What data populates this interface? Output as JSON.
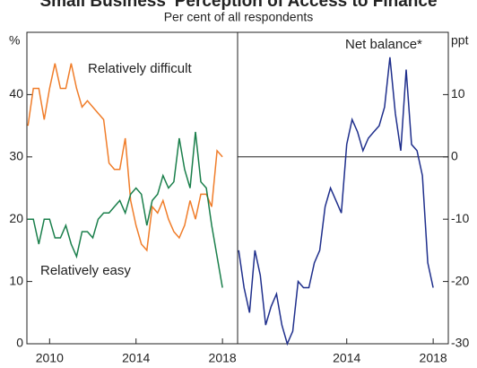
{
  "title": "Small Business' Perception of Access to Finance",
  "subtitle": "Per cent of all respondents",
  "chart_data": [
    {
      "type": "line",
      "ylabel": "%",
      "xlim": [
        2008.95,
        2018.7
      ],
      "xticks": [
        2010,
        2014,
        2018
      ],
      "ylim": [
        0,
        50
      ],
      "yticks": [
        0,
        10,
        20,
        30,
        40
      ],
      "x": [
        2009,
        2009.25,
        2009.5,
        2009.75,
        2010,
        2010.25,
        2010.5,
        2010.75,
        2011,
        2011.25,
        2011.5,
        2011.75,
        2012,
        2012.25,
        2012.5,
        2012.75,
        2013,
        2013.25,
        2013.5,
        2013.75,
        2014,
        2014.25,
        2014.5,
        2014.75,
        2015,
        2015.25,
        2015.5,
        2015.75,
        2016,
        2016.25,
        2016.5,
        2016.75,
        2017,
        2017.25,
        2017.5,
        2017.75,
        2018
      ],
      "series": [
        {
          "name": "Relatively difficult",
          "color": "#f07d2a",
          "values": [
            35,
            41,
            41,
            36,
            41,
            45,
            41,
            41,
            45,
            41,
            38,
            39,
            38,
            37,
            36,
            29,
            28,
            28,
            33,
            23,
            19,
            16,
            15,
            22,
            21,
            23,
            20,
            18,
            17,
            19,
            23,
            20,
            24,
            24,
            22,
            31,
            30
          ]
        },
        {
          "name": "Relatively easy",
          "color": "#1a7f4b",
          "values": [
            20,
            20,
            16,
            20,
            20,
            17,
            17,
            19,
            16,
            14,
            18,
            18,
            17,
            20,
            21,
            21,
            22,
            23,
            21,
            24,
            25,
            24,
            19,
            23,
            24,
            27,
            25,
            26,
            33,
            28,
            25,
            34,
            26,
            25,
            19,
            14,
            9
          ]
        }
      ]
    },
    {
      "type": "line",
      "ylabel": "ppt",
      "xlim": [
        2008.95,
        2018.7
      ],
      "xticks": [
        2014,
        2018
      ],
      "y2lim": [
        -30,
        20
      ],
      "y2ticks": [
        -30,
        -20,
        -10,
        0,
        10
      ],
      "x": [
        2009,
        2009.25,
        2009.5,
        2009.75,
        2010,
        2010.25,
        2010.5,
        2010.75,
        2011,
        2011.25,
        2011.5,
        2011.75,
        2012,
        2012.25,
        2012.5,
        2012.75,
        2013,
        2013.25,
        2013.5,
        2013.75,
        2014,
        2014.25,
        2014.5,
        2014.75,
        2015,
        2015.25,
        2015.5,
        2015.75,
        2016,
        2016.25,
        2016.5,
        2016.75,
        2017,
        2017.25,
        2017.5,
        2017.75,
        2018
      ],
      "series": [
        {
          "name": "Net balance*",
          "color": "#1f2f8c",
          "axis": "y2",
          "values": [
            -15,
            -21,
            -25,
            -15,
            -19,
            -27,
            -24,
            -22,
            -27,
            -30,
            -28,
            -20,
            -21,
            -21,
            -17,
            -15,
            -8,
            -5,
            -7,
            -9,
            2,
            6,
            4,
            1,
            3,
            4,
            5,
            8,
            16,
            7,
            1,
            14,
            2,
            1,
            -3,
            -17,
            -21
          ]
        }
      ]
    }
  ]
}
